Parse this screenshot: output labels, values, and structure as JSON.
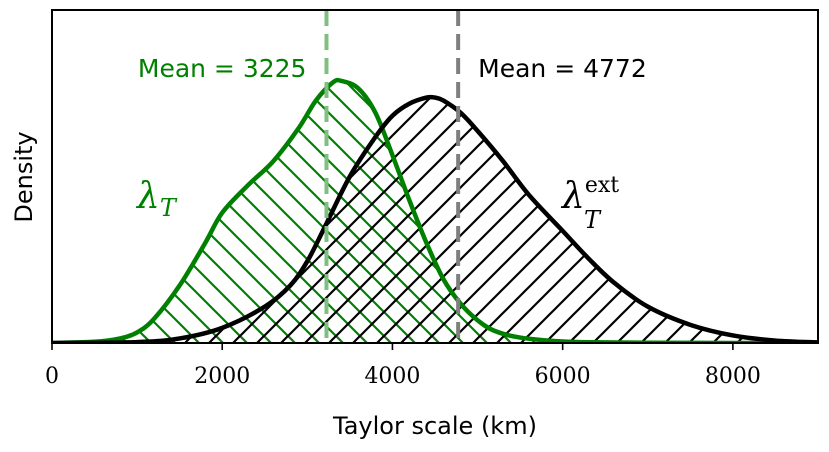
{
  "chart_data": {
    "type": "area",
    "title": "",
    "xlabel": "Taylor scale (km)",
    "ylabel": "Density",
    "xlim": [
      0,
      9000
    ],
    "ylim": [
      0,
      1.0
    ],
    "xticks": [
      0,
      2000,
      4000,
      6000,
      8000
    ],
    "grid": false,
    "series": [
      {
        "name": "λ_T",
        "label_main": "λ",
        "label_sub": "T",
        "label_sup": "",
        "color": "#008000",
        "hatch": "backslash",
        "x": [
          0,
          500,
          800,
          1000,
          1200,
          1500,
          1800,
          2000,
          2300,
          2600,
          2900,
          3100,
          3300,
          3400,
          3600,
          3800,
          4000,
          4200,
          4400,
          4600,
          4800,
          5000,
          5200,
          5500,
          6000,
          6500,
          7000,
          8000,
          9000
        ],
        "y": [
          0,
          0.004,
          0.015,
          0.035,
          0.08,
          0.19,
          0.33,
          0.43,
          0.52,
          0.6,
          0.71,
          0.8,
          0.86,
          0.865,
          0.84,
          0.76,
          0.62,
          0.47,
          0.33,
          0.21,
          0.13,
          0.075,
          0.04,
          0.018,
          0.005,
          0.002,
          0.001,
          0,
          0
        ],
        "mean": 3225,
        "mean_label": "Mean = 3225",
        "mean_color": "#7fbf7f"
      },
      {
        "name": "λ_T^ext",
        "label_main": "λ",
        "label_sub": "T",
        "label_sup": "ext",
        "color": "#000000",
        "hatch": "slash",
        "x": [
          0,
          1000,
          1500,
          2000,
          2500,
          2800,
          3000,
          3200,
          3500,
          3800,
          4000,
          4200,
          4400,
          4500,
          4600,
          4800,
          5000,
          5300,
          5600,
          6000,
          6300,
          6600,
          7000,
          7500,
          8000,
          8500,
          9000
        ],
        "y": [
          0,
          0.003,
          0.015,
          0.05,
          0.12,
          0.19,
          0.27,
          0.38,
          0.55,
          0.68,
          0.75,
          0.79,
          0.81,
          0.81,
          0.8,
          0.76,
          0.7,
          0.6,
          0.49,
          0.37,
          0.28,
          0.2,
          0.12,
          0.06,
          0.025,
          0.008,
          0.002
        ],
        "mean": 4772,
        "mean_label": "Mean = 4772",
        "mean_color": "#7f7f7f"
      }
    ]
  }
}
